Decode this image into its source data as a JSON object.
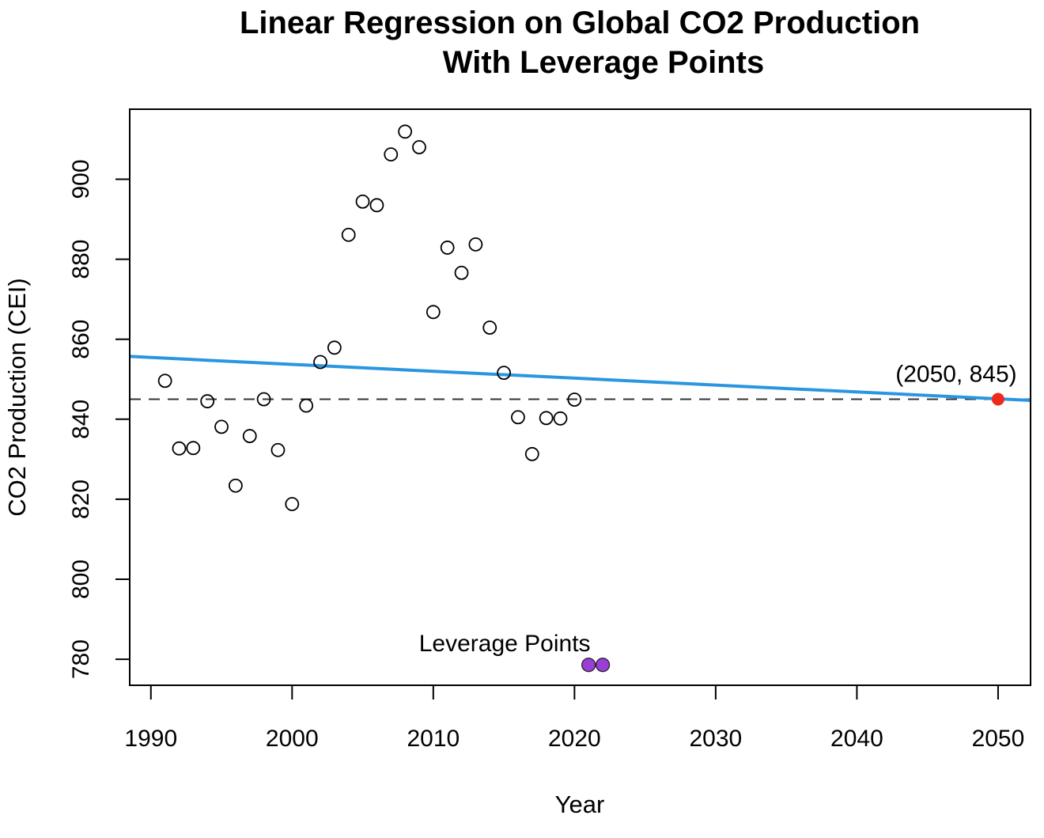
{
  "chart_data": {
    "type": "scatter",
    "title_line1": "Linear Regression on Global CO2 Production",
    "title_line2": "With Leverage Points",
    "xlabel": "Year",
    "ylabel": "CO2 Production (CEI)",
    "xlim": [
      1988.5,
      2052.3
    ],
    "ylim": [
      773.5,
      917.5
    ],
    "x_ticks": [
      1990,
      2000,
      2010,
      2020,
      2030,
      2040,
      2050
    ],
    "y_ticks": [
      780,
      800,
      820,
      840,
      860,
      880,
      900
    ],
    "grid": false,
    "points": [
      {
        "x": 1991,
        "y": 849.6
      },
      {
        "x": 1992,
        "y": 832.7
      },
      {
        "x": 1993,
        "y": 832.8
      },
      {
        "x": 1994,
        "y": 844.5
      },
      {
        "x": 1995,
        "y": 838.1
      },
      {
        "x": 1996,
        "y": 823.4
      },
      {
        "x": 1997,
        "y": 835.8
      },
      {
        "x": 1998,
        "y": 845.0
      },
      {
        "x": 1999,
        "y": 832.3
      },
      {
        "x": 2000,
        "y": 818.8
      },
      {
        "x": 2001,
        "y": 843.4
      },
      {
        "x": 2002,
        "y": 854.3
      },
      {
        "x": 2003,
        "y": 857.9
      },
      {
        "x": 2004,
        "y": 886.1
      },
      {
        "x": 2005,
        "y": 894.4
      },
      {
        "x": 2006,
        "y": 893.5
      },
      {
        "x": 2007,
        "y": 906.2
      },
      {
        "x": 2008,
        "y": 911.9
      },
      {
        "x": 2009,
        "y": 908.0
      },
      {
        "x": 2010,
        "y": 866.8
      },
      {
        "x": 2011,
        "y": 882.9
      },
      {
        "x": 2012,
        "y": 876.6
      },
      {
        "x": 2013,
        "y": 883.7
      },
      {
        "x": 2014,
        "y": 862.9
      },
      {
        "x": 2015,
        "y": 851.6
      },
      {
        "x": 2016,
        "y": 840.5
      },
      {
        "x": 2017,
        "y": 831.3
      },
      {
        "x": 2018,
        "y": 840.3
      },
      {
        "x": 2019,
        "y": 840.2
      },
      {
        "x": 2020,
        "y": 844.9
      }
    ],
    "leverage_points": [
      {
        "x": 2021,
        "y": 778.6
      },
      {
        "x": 2022,
        "y": 778.6
      }
    ],
    "leverage_label": "Leverage Points",
    "regression_line": {
      "x": [
        1988.5,
        2052.3
      ],
      "y": [
        855.7,
        844.7
      ]
    },
    "reference_line_y": 845,
    "highlight_point": {
      "x": 2050,
      "y": 845
    },
    "highlight_label": "(2050, 845)",
    "colors": {
      "regression": "#2a96e0",
      "highlight": "#ee2a1c",
      "leverage": "#9a3fd6",
      "reference": "#333333",
      "points": "#000000"
    }
  }
}
